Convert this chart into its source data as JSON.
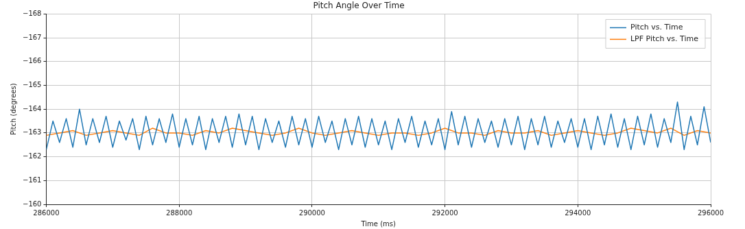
{
  "chart_data": {
    "type": "line",
    "title": "Pitch Angle Over Time",
    "xlabel": "Time (ms)",
    "ylabel": "Pitch (degrees)",
    "xlim": [
      286000,
      296000
    ],
    "xticks": [
      286000,
      288000,
      290000,
      292000,
      294000,
      296000
    ],
    "ylim": [
      -160,
      -168
    ],
    "yticks": [
      -168,
      -167,
      -166,
      -165,
      -164,
      -163,
      -162,
      -161,
      -160
    ],
    "grid": true,
    "legend": "top right",
    "marker": "none",
    "line_style": "solid",
    "series": [
      {
        "name": "Pitch vs. Time",
        "color": "#1f77b4",
        "x": [
          286000,
          286100,
          286200,
          286300,
          286400,
          286500,
          286600,
          286700,
          286800,
          286900,
          287000,
          287100,
          287200,
          287300,
          287400,
          287500,
          287600,
          287700,
          287800,
          287900,
          288000,
          288100,
          288200,
          288300,
          288400,
          288500,
          288600,
          288700,
          288800,
          288900,
          289000,
          289100,
          289200,
          289300,
          289400,
          289500,
          289600,
          289700,
          289800,
          289900,
          290000,
          290100,
          290200,
          290300,
          290400,
          290500,
          290600,
          290700,
          290800,
          290900,
          291000,
          291100,
          291200,
          291300,
          291400,
          291500,
          291600,
          291700,
          291800,
          291900,
          292000,
          292100,
          292200,
          292300,
          292400,
          292500,
          292600,
          292700,
          292800,
          292900,
          293000,
          293100,
          293200,
          293300,
          293400,
          293500,
          293600,
          293700,
          293800,
          293900,
          294000,
          294100,
          294200,
          294300,
          294400,
          294500,
          294600,
          294700,
          294800,
          294900,
          295000,
          295100,
          295200,
          295300,
          295400,
          295500,
          295600,
          295700,
          295800,
          295900,
          296000
        ],
        "values": [
          -162.3,
          -163.5,
          -162.6,
          -163.6,
          -162.4,
          -164.0,
          -162.5,
          -163.6,
          -162.6,
          -163.7,
          -162.4,
          -163.5,
          -162.7,
          -163.6,
          -162.3,
          -163.7,
          -162.5,
          -163.6,
          -162.6,
          -163.8,
          -162.4,
          -163.6,
          -162.5,
          -163.7,
          -162.3,
          -163.6,
          -162.6,
          -163.7,
          -162.4,
          -163.8,
          -162.5,
          -163.7,
          -162.3,
          -163.6,
          -162.6,
          -163.5,
          -162.4,
          -163.7,
          -162.5,
          -163.6,
          -162.4,
          -163.7,
          -162.6,
          -163.5,
          -162.3,
          -163.6,
          -162.5,
          -163.7,
          -162.4,
          -163.6,
          -162.5,
          -163.5,
          -162.3,
          -163.6,
          -162.6,
          -163.7,
          -162.4,
          -163.5,
          -162.5,
          -163.6,
          -162.3,
          -163.9,
          -162.5,
          -163.7,
          -162.4,
          -163.6,
          -162.6,
          -163.5,
          -162.4,
          -163.6,
          -162.5,
          -163.7,
          -162.3,
          -163.6,
          -162.5,
          -163.7,
          -162.4,
          -163.5,
          -162.6,
          -163.6,
          -162.4,
          -163.6,
          -162.3,
          -163.7,
          -162.5,
          -163.8,
          -162.4,
          -163.6,
          -162.3,
          -163.7,
          -162.5,
          -163.8,
          -162.4,
          -163.6,
          -162.6,
          -164.3,
          -162.3,
          -163.7,
          -162.5,
          -164.1,
          -162.6
        ]
      },
      {
        "name": "LPF Pitch vs. Time",
        "color": "#ff7f0e",
        "x": [
          286000,
          286200,
          286400,
          286600,
          286800,
          287000,
          287200,
          287400,
          287600,
          287800,
          288000,
          288200,
          288400,
          288600,
          288800,
          289000,
          289200,
          289400,
          289600,
          289800,
          290000,
          290200,
          290400,
          290600,
          290800,
          291000,
          291200,
          291400,
          291600,
          291800,
          292000,
          292200,
          292400,
          292600,
          292800,
          293000,
          293200,
          293400,
          293600,
          293800,
          294000,
          294200,
          294400,
          294600,
          294800,
          295000,
          295200,
          295400,
          295600,
          295800,
          296000
        ],
        "values": [
          -162.9,
          -163.0,
          -163.1,
          -162.9,
          -163.0,
          -163.1,
          -163.0,
          -162.9,
          -163.2,
          -163.0,
          -163.0,
          -162.9,
          -163.1,
          -163.0,
          -163.2,
          -163.1,
          -163.0,
          -162.9,
          -163.0,
          -163.2,
          -163.0,
          -162.9,
          -163.0,
          -163.1,
          -163.0,
          -162.9,
          -163.0,
          -163.0,
          -162.9,
          -163.0,
          -163.2,
          -163.0,
          -163.0,
          -162.9,
          -163.1,
          -163.0,
          -163.0,
          -163.1,
          -162.9,
          -163.0,
          -163.1,
          -163.0,
          -162.9,
          -163.0,
          -163.2,
          -163.1,
          -163.0,
          -163.2,
          -162.9,
          -163.1,
          -163.0
        ]
      }
    ]
  }
}
